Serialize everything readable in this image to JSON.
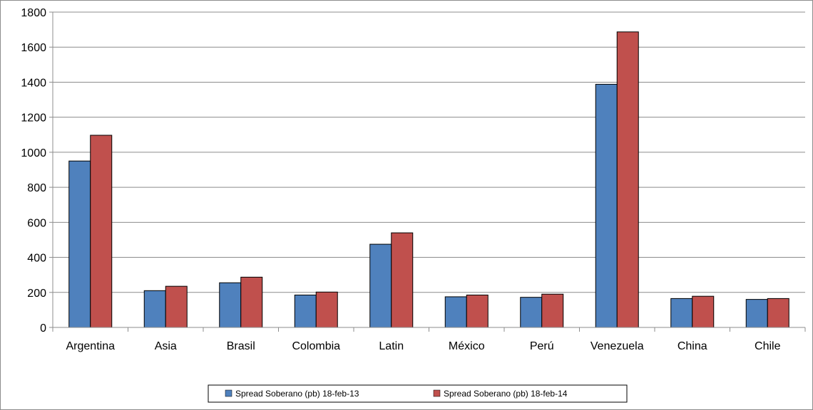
{
  "chart_data": {
    "type": "bar",
    "title": "",
    "xlabel": "",
    "ylabel": "",
    "categories": [
      "Argentina",
      "Asia",
      "Brasil",
      "Colombia",
      "Latin",
      "México",
      "Perú",
      "Venezuela",
      "China",
      "Chile"
    ],
    "series": [
      {
        "name": "Spread Soberano (pb) 18-feb-13",
        "color": "#4f81bd",
        "values": [
          950,
          210,
          255,
          185,
          475,
          175,
          172,
          1388,
          165,
          160
        ]
      },
      {
        "name": "Spread Soberano (pb) 18-feb-14",
        "color": "#c0504d",
        "values": [
          1097,
          235,
          287,
          202,
          540,
          185,
          190,
          1687,
          178,
          165
        ]
      }
    ],
    "ylim": [
      0,
      1800
    ],
    "yticks": [
      "0",
      "200",
      "400",
      "600",
      "800",
      "1000",
      "1200",
      "1400",
      "1600",
      "1800"
    ],
    "grid": true,
    "legend_position": "bottom"
  }
}
